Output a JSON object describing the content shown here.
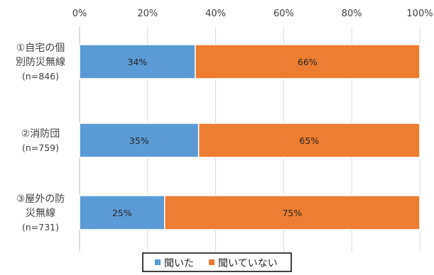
{
  "chart_data": {
    "type": "bar",
    "orientation": "horizontal",
    "stacked": "percent",
    "title": "",
    "xlabel": "",
    "ylabel": "",
    "xlim": [
      0,
      100
    ],
    "x_ticks": [
      "0%",
      "20%",
      "40%",
      "60%",
      "80%",
      "100%"
    ],
    "x_axis_position": "top",
    "grid": true,
    "legend_position": "bottom",
    "categories": [
      {
        "lines": [
          "①自宅の個",
          "別防災無線"
        ],
        "n": "(n=846)"
      },
      {
        "lines": [
          "②消防団"
        ],
        "n": "(n=759)"
      },
      {
        "lines": [
          "③屋外の防",
          "災無線"
        ],
        "n": "(n=731)"
      }
    ],
    "series": [
      {
        "name": "聞いた",
        "color": "#5b9bd5",
        "values": [
          34,
          35,
          25
        ],
        "labels": [
          "34%",
          "35%",
          "25%"
        ]
      },
      {
        "name": "聞いていない",
        "color": "#ed7d31",
        "values": [
          66,
          65,
          75
        ],
        "labels": [
          "66%",
          "65%",
          "75%"
        ]
      }
    ]
  }
}
